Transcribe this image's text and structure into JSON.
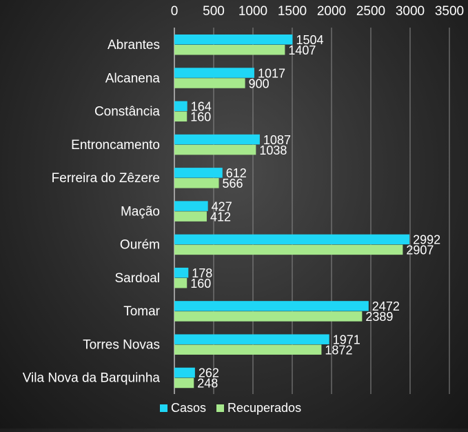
{
  "chart_data": {
    "type": "bar",
    "orientation": "horizontal",
    "categories": [
      "Abrantes",
      "Alcanena",
      "Constância",
      "Entroncamento",
      "Ferreira do Zêzere",
      "Mação",
      "Ourém",
      "Sardoal",
      "Tomar",
      "Torres Novas",
      "Vila Nova da Barquinha"
    ],
    "series": [
      {
        "name": "Casos",
        "color": "#1fd6f5",
        "values": [
          1504,
          1017,
          164,
          1087,
          612,
          427,
          2992,
          178,
          2472,
          1971,
          262
        ]
      },
      {
        "name": "Recuperados",
        "color": "#a6e88c",
        "values": [
          1407,
          900,
          160,
          1038,
          566,
          412,
          2907,
          160,
          2389,
          1872,
          248
        ]
      }
    ],
    "xlim": [
      0,
      3500
    ],
    "x_ticks": [
      0,
      500,
      1000,
      1500,
      2000,
      2500,
      3000,
      3500
    ],
    "x_axis_position": "top",
    "grid": true,
    "data_labels": true,
    "legend_position": "bottom-center",
    "title": "",
    "xlabel": "",
    "ylabel": ""
  }
}
